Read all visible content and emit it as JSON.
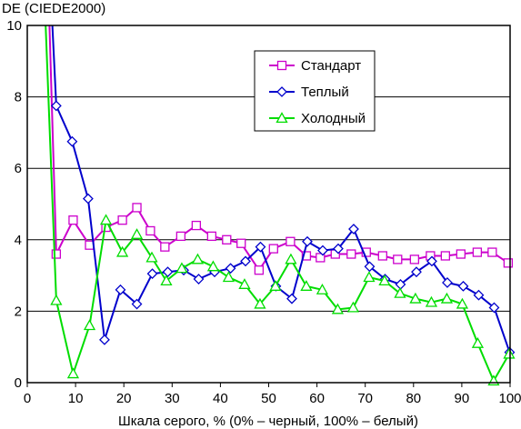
{
  "chart_data": {
    "type": "line",
    "title": "",
    "ylabel": "DE (CIEDE2000)",
    "xlabel": "Шкала серого, % (0% – черный, 100% – белый)",
    "xlim": [
      0,
      100
    ],
    "ylim": [
      0,
      10
    ],
    "xticks": [
      "0",
      "10",
      "20",
      "30",
      "40",
      "50",
      "60",
      "70",
      "80",
      "90",
      "100"
    ],
    "yticks": [
      "0",
      "2",
      "4",
      "6",
      "8",
      "10"
    ],
    "grid": "horizontal",
    "legend_position": "top-right",
    "series": [
      {
        "name": "Стандарт",
        "color": "#cc00cc",
        "marker": "square",
        "x": [
          6,
          9.5,
          12.9,
          16.3,
          19.7,
          22.7,
          25.5,
          28.5,
          31.8,
          35,
          38.2,
          41.3,
          44.3,
          48,
          51,
          54.5,
          57.8,
          60.7,
          63.8,
          67.1,
          70.2,
          73.6,
          76.7,
          80.2,
          83.5,
          86.6,
          89.8,
          93.2,
          96.3,
          99.6
        ],
        "y": [
          3.6,
          4.55,
          3.85,
          4.35,
          4.55,
          4.9,
          4.25,
          3.8,
          4.1,
          4.4,
          4.1,
          4.0,
          3.9,
          3.15,
          3.75,
          3.95,
          3.55,
          3.5,
          3.6,
          3.6,
          3.65,
          3.55,
          3.45,
          3.45,
          3.55,
          3.55,
          3.6,
          3.65,
          3.65,
          3.35
        ]
      },
      {
        "name": "Теплый",
        "color": "#0000cc",
        "marker": "diamond",
        "x": [
          6,
          9.3,
          12.6,
          16,
          19.3,
          22.7,
          25.9,
          29.1,
          32.4,
          35.5,
          38.8,
          42.1,
          45.2,
          48.3,
          51.5,
          54.8,
          58,
          61.2,
          64.4,
          67.6,
          70.9,
          74.1,
          77.3,
          80.6,
          83.8,
          87,
          90.3,
          93.5,
          96.7,
          99.9
        ],
        "y": [
          7.75,
          6.75,
          5.15,
          1.2,
          2.6,
          2.2,
          3.05,
          3.1,
          3.15,
          2.9,
          3.1,
          3.2,
          3.4,
          3.8,
          2.7,
          2.35,
          3.95,
          3.7,
          3.75,
          4.3,
          3.25,
          2.9,
          2.75,
          3.1,
          3.4,
          2.8,
          2.7,
          2.45,
          2.1,
          0.85
        ]
      },
      {
        "name": "Холодный",
        "color": "#00dd00",
        "marker": "triangle",
        "x": [
          6,
          9.5,
          12.9,
          16.3,
          19.7,
          22.7,
          25.8,
          28.8,
          32,
          35.3,
          38.5,
          41.7,
          45,
          48.2,
          51.4,
          54.6,
          57.8,
          61.1,
          64.3,
          67.5,
          70.8,
          74,
          77.2,
          80.4,
          83.7,
          86.9,
          90.1,
          93.3,
          96.6,
          99.8
        ],
        "y": [
          2.3,
          0.25,
          1.6,
          4.55,
          3.65,
          4.15,
          3.5,
          2.85,
          3.2,
          3.45,
          3.25,
          2.95,
          2.75,
          2.2,
          2.7,
          3.45,
          2.7,
          2.6,
          2.05,
          2.1,
          2.95,
          2.85,
          2.5,
          2.35,
          2.25,
          2.35,
          2.2,
          1.1,
          0.05,
          0.8
        ]
      }
    ],
    "steep_entry": {
      "Стандарт": [
        [
          4.6,
          10
        ],
        [
          6,
          3.6
        ]
      ],
      "Теплый": [
        [
          5.2,
          10
        ],
        [
          6,
          7.75
        ]
      ],
      "Холодный": [
        [
          3.8,
          10
        ],
        [
          6,
          2.3
        ]
      ]
    }
  }
}
